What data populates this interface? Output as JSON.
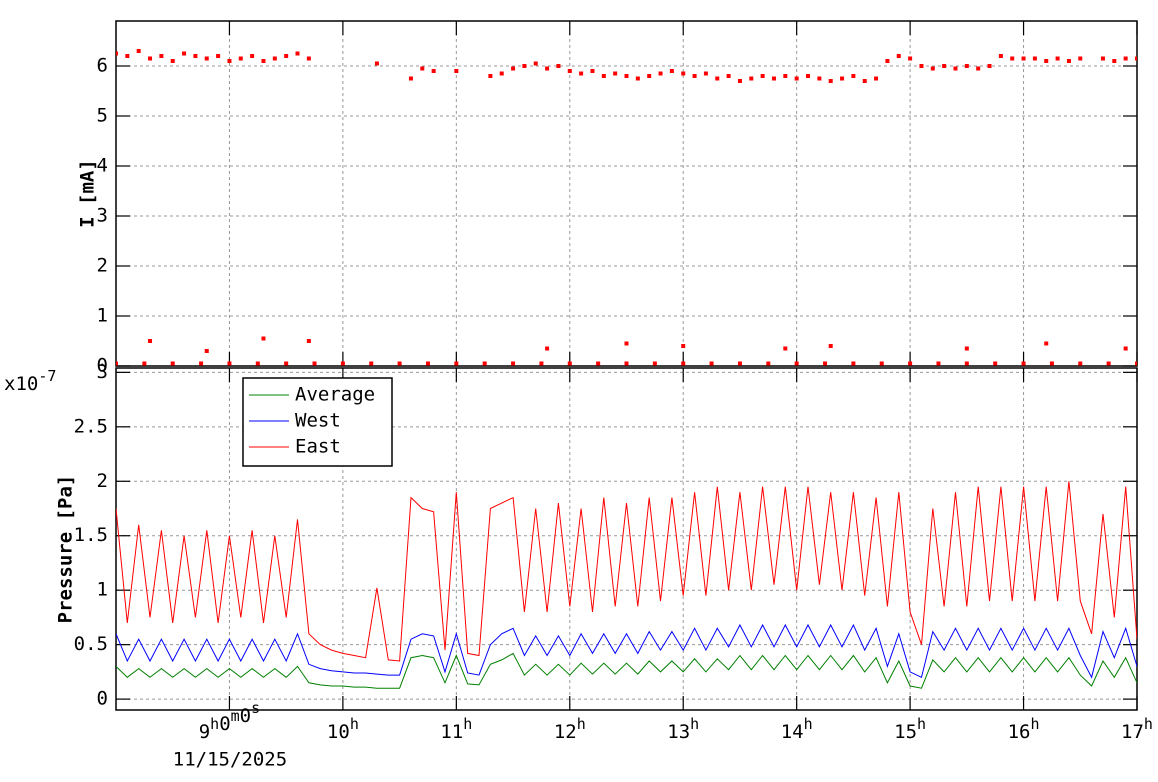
{
  "chart_data": [
    {
      "type": "scatter",
      "y_label": "I [mA]",
      "color": "#ff0000",
      "xlim": [
        8,
        17
      ],
      "ylim": [
        0,
        6.9
      ],
      "yticks": [
        0,
        1,
        2,
        3,
        4,
        5,
        6
      ],
      "grid": true,
      "x": [
        8.0,
        8.1,
        8.2,
        8.3,
        8.4,
        8.5,
        8.6,
        8.7,
        8.8,
        8.9,
        9.0,
        9.1,
        9.2,
        9.3,
        9.4,
        9.5,
        9.6,
        9.7,
        10.3,
        10.6,
        10.7,
        10.8,
        11.0,
        11.3,
        11.4,
        11.5,
        11.6,
        11.7,
        11.8,
        11.9,
        12.0,
        12.1,
        12.2,
        12.3,
        12.4,
        12.5,
        12.6,
        12.7,
        12.8,
        12.9,
        13.0,
        13.1,
        13.2,
        13.3,
        13.4,
        13.5,
        13.6,
        13.7,
        13.8,
        13.9,
        14.0,
        14.1,
        14.2,
        14.3,
        14.4,
        14.5,
        14.6,
        14.7,
        14.8,
        14.9,
        15.0,
        15.1,
        15.2,
        15.3,
        15.4,
        15.5,
        15.6,
        15.7,
        15.8,
        15.9,
        16.0,
        16.1,
        16.2,
        16.3,
        16.4,
        16.5,
        16.7,
        16.8,
        16.9,
        17.0,
        8.0,
        8.25,
        8.5,
        8.75,
        9.0,
        9.25,
        9.5,
        9.75,
        10.0,
        10.25,
        10.5,
        10.75,
        11.0,
        11.25,
        11.5,
        11.75,
        12.0,
        12.25,
        12.5,
        12.75,
        13.0,
        13.25,
        13.5,
        13.75,
        14.0,
        14.25,
        14.5,
        14.75,
        15.0,
        15.25,
        15.5,
        15.75,
        16.0,
        16.25,
        16.5,
        16.75,
        17.0,
        8.3,
        8.8,
        9.3,
        9.7,
        11.8,
        12.5,
        13.0,
        13.9,
        14.3,
        15.5,
        16.2,
        16.9
      ],
      "values": [
        6.25,
        6.2,
        6.3,
        6.15,
        6.2,
        6.1,
        6.25,
        6.2,
        6.15,
        6.2,
        6.1,
        6.15,
        6.2,
        6.1,
        6.15,
        6.2,
        6.25,
        6.15,
        6.05,
        5.75,
        5.95,
        5.9,
        5.9,
        5.8,
        5.85,
        5.95,
        6.0,
        6.05,
        5.95,
        6.0,
        5.9,
        5.85,
        5.9,
        5.8,
        5.85,
        5.8,
        5.75,
        5.8,
        5.85,
        5.9,
        5.85,
        5.8,
        5.85,
        5.75,
        5.8,
        5.7,
        5.75,
        5.8,
        5.75,
        5.8,
        5.75,
        5.8,
        5.75,
        5.7,
        5.75,
        5.8,
        5.7,
        5.75,
        6.1,
        6.2,
        6.15,
        6.0,
        5.95,
        6.0,
        5.95,
        6.0,
        5.95,
        6.0,
        6.2,
        6.15,
        6.15,
        6.15,
        6.1,
        6.15,
        6.1,
        6.15,
        6.15,
        6.1,
        6.15,
        6.15,
        0.05,
        0.05,
        0.05,
        0.05,
        0.05,
        0.05,
        0.05,
        0.05,
        0.05,
        0.05,
        0.05,
        0.05,
        0.05,
        0.05,
        0.05,
        0.05,
        0.05,
        0.05,
        0.05,
        0.05,
        0.05,
        0.05,
        0.05,
        0.05,
        0.05,
        0.05,
        0.05,
        0.05,
        0.05,
        0.05,
        0.05,
        0.05,
        0.05,
        0.05,
        0.05,
        0.05,
        0.05,
        0.5,
        0.3,
        0.55,
        0.5,
        0.35,
        0.45,
        0.4,
        0.35,
        0.4,
        0.35,
        0.45,
        0.35
      ]
    },
    {
      "type": "line",
      "y_label": "Pressure [Pa]",
      "exponent": "x10-7",
      "x_date": "11/15/2025",
      "xlim": [
        8,
        17
      ],
      "xticks": [
        {
          "value": 9,
          "label": "9h0m0s"
        },
        {
          "value": 10,
          "label": "10h"
        },
        {
          "value": 11,
          "label": "11h"
        },
        {
          "value": 12,
          "label": "12h"
        },
        {
          "value": 13,
          "label": "13h"
        },
        {
          "value": 14,
          "label": "14h"
        },
        {
          "value": 15,
          "label": "15h"
        },
        {
          "value": 16,
          "label": "16h"
        },
        {
          "value": 17,
          "label": "17h"
        }
      ],
      "ylim": [
        -0.1,
        3.04
      ],
      "yticks": [
        0,
        0.5,
        1,
        1.5,
        2,
        2.5,
        3
      ],
      "grid": true,
      "legend": "top-left",
      "x": [
        8.0,
        8.1,
        8.2,
        8.3,
        8.4,
        8.5,
        8.6,
        8.7,
        8.8,
        8.9,
        9.0,
        9.1,
        9.2,
        9.3,
        9.4,
        9.5,
        9.6,
        9.7,
        9.8,
        9.9,
        10.0,
        10.1,
        10.2,
        10.3,
        10.4,
        10.5,
        10.6,
        10.7,
        10.8,
        10.9,
        11.0,
        11.1,
        11.2,
        11.3,
        11.4,
        11.5,
        11.6,
        11.7,
        11.8,
        11.9,
        12.0,
        12.1,
        12.2,
        12.3,
        12.4,
        12.5,
        12.6,
        12.7,
        12.8,
        12.9,
        13.0,
        13.1,
        13.2,
        13.3,
        13.4,
        13.5,
        13.6,
        13.7,
        13.8,
        13.9,
        14.0,
        14.1,
        14.2,
        14.3,
        14.4,
        14.5,
        14.6,
        14.7,
        14.8,
        14.9,
        15.0,
        15.1,
        15.2,
        15.3,
        15.4,
        15.5,
        15.6,
        15.7,
        15.8,
        15.9,
        16.0,
        16.1,
        16.2,
        16.3,
        16.4,
        16.5,
        16.6,
        16.7,
        16.8,
        16.9,
        17.0
      ],
      "series": [
        {
          "name": "Average",
          "color": "#008000",
          "values": [
            0.3,
            0.2,
            0.28,
            0.2,
            0.28,
            0.2,
            0.28,
            0.2,
            0.28,
            0.2,
            0.28,
            0.2,
            0.28,
            0.2,
            0.28,
            0.2,
            0.3,
            0.15,
            0.13,
            0.12,
            0.12,
            0.11,
            0.11,
            0.1,
            0.1,
            0.1,
            0.38,
            0.4,
            0.38,
            0.15,
            0.4,
            0.14,
            0.13,
            0.32,
            0.36,
            0.42,
            0.22,
            0.32,
            0.22,
            0.32,
            0.22,
            0.33,
            0.23,
            0.33,
            0.23,
            0.33,
            0.23,
            0.35,
            0.25,
            0.35,
            0.25,
            0.37,
            0.25,
            0.37,
            0.27,
            0.4,
            0.27,
            0.4,
            0.27,
            0.4,
            0.27,
            0.4,
            0.27,
            0.4,
            0.27,
            0.4,
            0.25,
            0.38,
            0.15,
            0.35,
            0.12,
            0.1,
            0.36,
            0.25,
            0.38,
            0.25,
            0.38,
            0.25,
            0.38,
            0.25,
            0.38,
            0.25,
            0.38,
            0.25,
            0.38,
            0.22,
            0.12,
            0.35,
            0.2,
            0.38,
            0.15
          ]
        },
        {
          "name": "West",
          "color": "#0000ff",
          "values": [
            0.6,
            0.35,
            0.55,
            0.35,
            0.55,
            0.35,
            0.55,
            0.35,
            0.55,
            0.35,
            0.55,
            0.35,
            0.55,
            0.35,
            0.55,
            0.35,
            0.6,
            0.32,
            0.28,
            0.26,
            0.25,
            0.24,
            0.24,
            0.23,
            0.22,
            0.22,
            0.55,
            0.6,
            0.58,
            0.25,
            0.6,
            0.24,
            0.22,
            0.5,
            0.6,
            0.65,
            0.4,
            0.58,
            0.4,
            0.58,
            0.4,
            0.6,
            0.42,
            0.6,
            0.42,
            0.6,
            0.42,
            0.62,
            0.45,
            0.62,
            0.45,
            0.65,
            0.45,
            0.65,
            0.48,
            0.68,
            0.48,
            0.68,
            0.48,
            0.68,
            0.48,
            0.68,
            0.48,
            0.68,
            0.48,
            0.68,
            0.45,
            0.65,
            0.3,
            0.6,
            0.25,
            0.2,
            0.62,
            0.45,
            0.65,
            0.45,
            0.65,
            0.45,
            0.65,
            0.45,
            0.65,
            0.45,
            0.65,
            0.45,
            0.65,
            0.4,
            0.2,
            0.62,
            0.38,
            0.65,
            0.3
          ]
        },
        {
          "name": "East",
          "color": "#ff0000",
          "values": [
            1.75,
            0.7,
            1.6,
            0.75,
            1.55,
            0.7,
            1.5,
            0.75,
            1.55,
            0.7,
            1.5,
            0.75,
            1.55,
            0.7,
            1.5,
            0.75,
            1.65,
            0.6,
            0.5,
            0.45,
            0.42,
            0.4,
            0.38,
            1.02,
            0.36,
            0.35,
            1.85,
            1.75,
            1.72,
            0.45,
            1.9,
            0.42,
            0.4,
            1.75,
            1.8,
            1.85,
            0.8,
            1.75,
            0.8,
            1.8,
            0.85,
            1.75,
            0.8,
            1.85,
            0.85,
            1.8,
            0.85,
            1.85,
            0.9,
            1.85,
            0.95,
            1.9,
            0.95,
            1.95,
            1.0,
            1.9,
            1.0,
            1.95,
            1.05,
            1.95,
            1.0,
            1.95,
            1.05,
            1.9,
            1.0,
            1.9,
            0.95,
            1.85,
            0.85,
            1.9,
            0.8,
            0.5,
            1.75,
            0.85,
            1.9,
            0.85,
            1.95,
            0.9,
            1.95,
            0.9,
            1.95,
            0.9,
            1.95,
            0.9,
            2.0,
            0.9,
            0.6,
            1.7,
            0.75,
            1.95,
            0.55
          ]
        }
      ]
    }
  ]
}
